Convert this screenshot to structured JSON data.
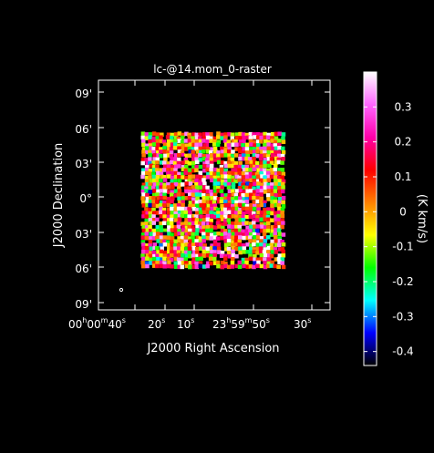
{
  "chart_data": {
    "type": "heatmap",
    "title": "lc-@14.mom_0-raster",
    "xlabel": "J2000 Right Ascension",
    "ylabel": "J2000 Declination",
    "x_ticks": [
      {
        "hm": "00",
        "h": "h",
        "mm": "00",
        "m": "m",
        "ss": "40",
        "s": "s"
      },
      {
        "ss": "20",
        "s": "s"
      },
      {
        "ss": "10",
        "s": "s"
      },
      {
        "hm": "23",
        "h": "h",
        "mm": "59",
        "m": "m",
        "ss": "50",
        "s": "s"
      },
      {
        "ss": "30",
        "s": "s"
      }
    ],
    "y_ticks": [
      "09'",
      "06'",
      "03'",
      "0°",
      "03'",
      "06'",
      "09'"
    ],
    "colorbar": {
      "label": "(K km/s)",
      "ticks": [
        "0.3",
        "0.2",
        "0.1",
        "0",
        "-0.1",
        "-0.2",
        "-0.3",
        "-0.4"
      ],
      "tick_values": [
        0.3,
        0.2,
        0.1,
        0,
        -0.1,
        -0.2,
        -0.3,
        -0.4
      ],
      "range": [
        -0.44,
        0.4
      ],
      "colors": [
        "#000000",
        "#0000ff",
        "#00ffff",
        "#00ff00",
        "#ffff00",
        "#ff8000",
        "#ff0000",
        "#ff00aa",
        "#ff66ff",
        "#ffffff"
      ]
    },
    "map": {
      "ra_range_s": [
        44,
        25
      ],
      "dec_range_arcmin": [
        -10.5,
        10.5
      ],
      "data_ra_s": [
        37,
        28.5
      ],
      "data_dec_arcmin": [
        -6.3,
        5.4
      ],
      "noise_rms": 0.12
    }
  }
}
